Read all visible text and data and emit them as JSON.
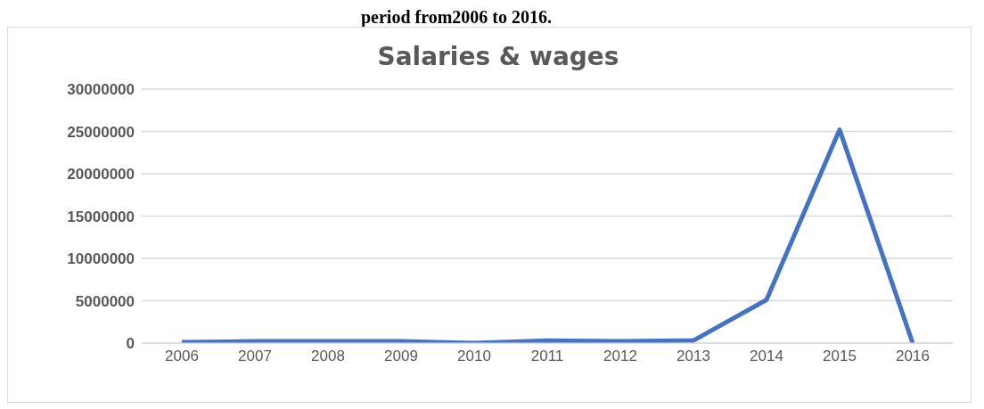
{
  "chart_data": {
    "type": "line",
    "title": "Salaries & wages",
    "annotations": [
      "period from2006 to 2016."
    ],
    "categories": [
      "2006",
      "2007",
      "2008",
      "2009",
      "2010",
      "2011",
      "2012",
      "2013",
      "2014",
      "2015",
      "2016"
    ],
    "series": [
      {
        "color": "#4472c4",
        "values": [
          100000,
          200000,
          200000,
          200000,
          0,
          300000,
          200000,
          300000,
          5100000,
          25200000,
          0
        ]
      }
    ],
    "ylim": [
      0,
      30000000
    ],
    "yticks": [
      0,
      5000000,
      10000000,
      15000000,
      20000000,
      25000000,
      30000000
    ],
    "grid": "y",
    "legend": false,
    "marker": "none",
    "line_style": "solid"
  }
}
